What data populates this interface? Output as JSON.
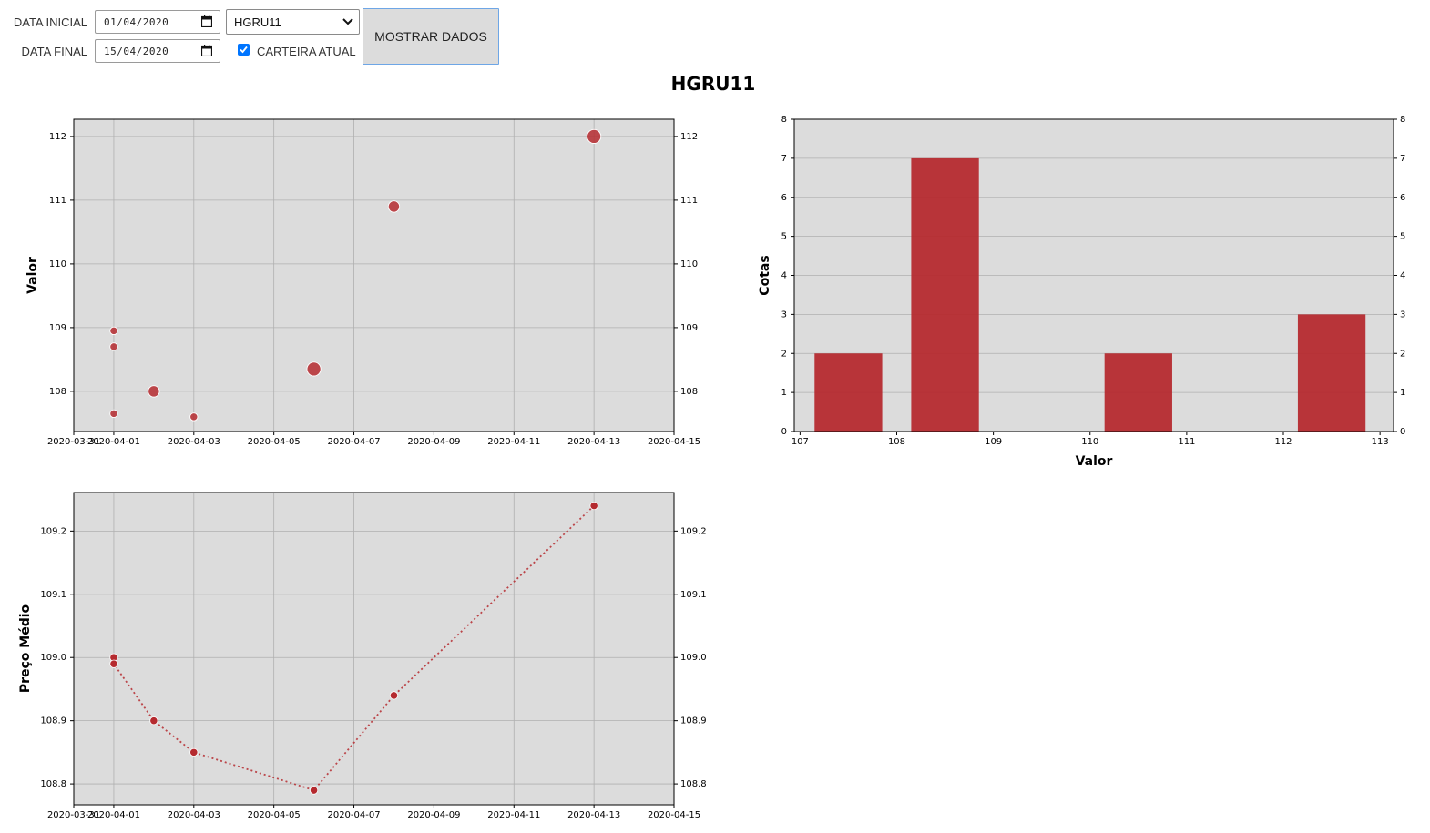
{
  "form": {
    "start_label": "DATA INICIAL",
    "start_value": "01/04/2020",
    "end_label": "DATA FINAL",
    "end_value": "15/04/2020",
    "ticker_selected": "HGRU11",
    "current_portfolio_label": "CARTEIRA ATUAL",
    "current_portfolio_checked": true,
    "show_button_label": "MOSTRAR DADOS"
  },
  "page_title": "HGRU11",
  "colors": {
    "accent": "#b52a2f",
    "plot_bg": "#dcdcdc",
    "grid": "#b0b0b0",
    "checkbox": "#0075ff"
  },
  "chart_data": [
    {
      "type": "scatter",
      "ylabel": "Valor",
      "xlim": [
        "2020-03-31",
        "2020-04-15"
      ],
      "ylim": [
        107.37,
        112.27
      ],
      "x_ticks": [
        "2020-03-31",
        "2020-04-01",
        "2020-04-03",
        "2020-04-05",
        "2020-04-07",
        "2020-04-09",
        "2020-04-11",
        "2020-04-13",
        "2020-04-15"
      ],
      "x_tick_labels": [
        "2020-03-31",
        "2020-04-01",
        "2020-04-03",
        "2020-04-05",
        "2020-04-07",
        "2020-04-09",
        "2020-04-11",
        "2020-04-13",
        "2020-04-15"
      ],
      "y_ticks": [
        108,
        109,
        110,
        111,
        112
      ],
      "grid": true,
      "points": [
        {
          "x": "2020-04-01",
          "y": 108.95,
          "size": 1
        },
        {
          "x": "2020-04-01",
          "y": 108.7,
          "size": 1
        },
        {
          "x": "2020-04-01",
          "y": 107.65,
          "size": 1
        },
        {
          "x": "2020-04-02",
          "y": 108.0,
          "size": 2
        },
        {
          "x": "2020-04-03",
          "y": 107.6,
          "size": 1
        },
        {
          "x": "2020-04-06",
          "y": 108.35,
          "size": 3
        },
        {
          "x": "2020-04-08",
          "y": 110.9,
          "size": 2
        },
        {
          "x": "2020-04-13",
          "y": 112.0,
          "size": 3
        }
      ]
    },
    {
      "type": "bar",
      "xlabel": "Valor",
      "ylabel": "Cotas",
      "xlim": [
        106.94,
        113.14
      ],
      "ylim": [
        0,
        8
      ],
      "x_ticks": [
        107,
        108,
        109,
        110,
        111,
        112,
        113
      ],
      "y_ticks": [
        0,
        1,
        2,
        3,
        4,
        5,
        6,
        7,
        8
      ],
      "grid": true,
      "bars": [
        {
          "x0": 107.15,
          "x1": 107.85,
          "value": 2
        },
        {
          "x0": 108.15,
          "x1": 108.85,
          "value": 7
        },
        {
          "x0": 110.15,
          "x1": 110.85,
          "value": 2
        },
        {
          "x0": 112.15,
          "x1": 112.85,
          "value": 3
        }
      ]
    },
    {
      "type": "line",
      "ylabel": "Preço Médio",
      "line_style": "dotted",
      "xlim": [
        "2020-03-31",
        "2020-04-15"
      ],
      "ylim": [
        108.767,
        109.261
      ],
      "x_ticks": [
        "2020-03-31",
        "2020-04-01",
        "2020-04-03",
        "2020-04-05",
        "2020-04-07",
        "2020-04-09",
        "2020-04-11",
        "2020-04-13",
        "2020-04-15"
      ],
      "x_tick_labels": [
        "2020-03-31",
        "2020-04-01",
        "2020-04-03",
        "2020-04-05",
        "2020-04-07",
        "2020-04-09",
        "2020-04-11",
        "2020-04-13",
        "2020-04-15"
      ],
      "y_ticks": [
        108.8,
        108.9,
        109.0,
        109.1,
        109.2
      ],
      "y_tick_labels": [
        "108.8",
        "108.9",
        "109.0",
        "109.1",
        "109.2"
      ],
      "grid": true,
      "points": [
        {
          "x": "2020-04-01",
          "y": 109.0
        },
        {
          "x": "2020-04-01",
          "y": 108.99
        },
        {
          "x": "2020-04-02",
          "y": 108.9
        },
        {
          "x": "2020-04-03",
          "y": 108.85
        },
        {
          "x": "2020-04-06",
          "y": 108.79
        },
        {
          "x": "2020-04-08",
          "y": 108.94
        },
        {
          "x": "2020-04-13",
          "y": 109.24
        }
      ]
    }
  ]
}
